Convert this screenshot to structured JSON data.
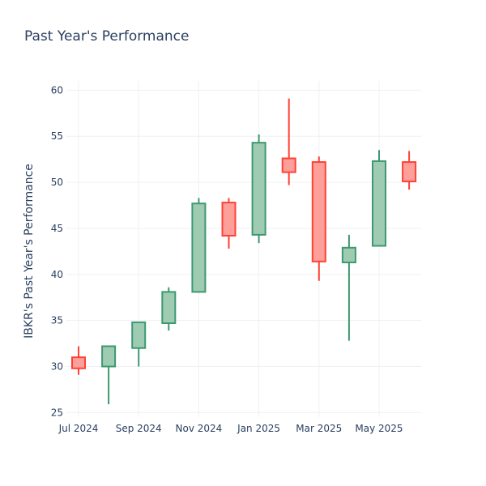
{
  "chart_data": {
    "type": "candlestick",
    "title": "Past Year's Performance",
    "xlabel": "",
    "ylabel": "IBKR's Past Year's Performance",
    "ylim": [
      24.5,
      61
    ],
    "yticks": [
      25,
      30,
      35,
      40,
      45,
      50,
      55,
      60
    ],
    "xticks": [
      {
        "label": "Jul 2024",
        "index": 0
      },
      {
        "label": "Sep 2024",
        "index": 2
      },
      {
        "label": "Nov 2024",
        "index": 4
      },
      {
        "label": "Jan 2025",
        "index": 6
      },
      {
        "label": "Mar 2025",
        "index": 8
      },
      {
        "label": "May 2025",
        "index": 10
      }
    ],
    "grid": true,
    "colors": {
      "increasing": "#3d9970",
      "increasing_fill": "#9ecbb2",
      "decreasing": "#ff4136",
      "decreasing_fill": "#ff9f9a"
    },
    "candles": [
      {
        "date": "2024-07",
        "open": 31.0,
        "high": 32.2,
        "low": 29.1,
        "close": 29.8
      },
      {
        "date": "2024-08",
        "open": 30.0,
        "high": 32.2,
        "low": 25.9,
        "close": 32.2
      },
      {
        "date": "2024-09",
        "open": 32.0,
        "high": 34.8,
        "low": 30.0,
        "close": 34.8
      },
      {
        "date": "2024-10",
        "open": 34.7,
        "high": 38.6,
        "low": 33.9,
        "close": 38.1
      },
      {
        "date": "2024-11",
        "open": 38.1,
        "high": 48.3,
        "low": 38.0,
        "close": 47.7
      },
      {
        "date": "2024-12",
        "open": 47.8,
        "high": 48.3,
        "low": 42.8,
        "close": 44.2
      },
      {
        "date": "2025-01",
        "open": 44.3,
        "high": 55.2,
        "low": 43.4,
        "close": 54.3
      },
      {
        "date": "2025-02",
        "open": 52.6,
        "high": 59.1,
        "low": 49.7,
        "close": 51.1
      },
      {
        "date": "2025-03",
        "open": 52.2,
        "high": 52.8,
        "low": 39.3,
        "close": 41.4
      },
      {
        "date": "2025-04",
        "open": 41.3,
        "high": 44.3,
        "low": 32.8,
        "close": 42.9
      },
      {
        "date": "2025-05",
        "open": 43.1,
        "high": 53.5,
        "low": 43.1,
        "close": 52.3
      },
      {
        "date": "2025-06",
        "open": 52.2,
        "high": 53.4,
        "low": 49.2,
        "close": 50.1
      }
    ]
  }
}
